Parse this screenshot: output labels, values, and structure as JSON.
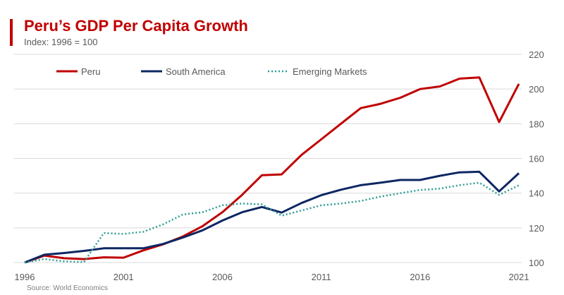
{
  "header": {
    "title": "Peru’s GDP Per Capita Growth",
    "subtitle": "Index: 1996 = 100",
    "source": "Source: World Economics"
  },
  "chart_data": {
    "type": "line",
    "title": "Peru’s GDP Per Capita Growth",
    "subtitle": "Index: 1996 = 100",
    "x": [
      1996,
      1997,
      1998,
      1999,
      2000,
      2001,
      2002,
      2003,
      2004,
      2005,
      2006,
      2007,
      2008,
      2009,
      2010,
      2011,
      2012,
      2013,
      2014,
      2015,
      2016,
      2017,
      2018,
      2019,
      2020,
      2021
    ],
    "x_ticks": [
      "1996",
      "2001",
      "2006",
      "2011",
      "2016",
      "2021"
    ],
    "y_ticks": [
      "100",
      "120",
      "140",
      "160",
      "180",
      "200",
      "220"
    ],
    "ylim": [
      100,
      220
    ],
    "xlim": [
      1996,
      2021
    ],
    "grid": "horizontal",
    "y_axis_side": "right",
    "legend": "top-left",
    "series": [
      {
        "name": "Peru",
        "color": "#c00000",
        "style": "solid",
        "values": [
          100,
          104,
          102.5,
          102,
          103,
          102.8,
          107,
          110.5,
          115,
          121,
          129,
          139,
          150.3,
          150.8,
          162,
          171,
          180,
          189,
          191.5,
          195,
          200,
          201.5,
          206,
          206.7,
          181,
          203
        ]
      },
      {
        "name": "South America",
        "color": "#0d2763",
        "style": "solid",
        "values": [
          100,
          104.5,
          105.5,
          106.7,
          108.2,
          108.2,
          108.2,
          110.7,
          114.4,
          118.6,
          124.2,
          129,
          132,
          128.8,
          134.3,
          138.8,
          142,
          144.6,
          146,
          147.6,
          147.6,
          150,
          152,
          152.3,
          141,
          151.5
        ]
      },
      {
        "name": "Emerging Markets",
        "color": "#2a9d94",
        "style": "dotted",
        "values": [
          100,
          102,
          100.7,
          100.2,
          117,
          116.5,
          117.7,
          122,
          127.7,
          129,
          133,
          134,
          133.5,
          127,
          130,
          133,
          134,
          135.5,
          138,
          140,
          141.8,
          142.6,
          144.6,
          146,
          139,
          144.5
        ]
      }
    ]
  }
}
